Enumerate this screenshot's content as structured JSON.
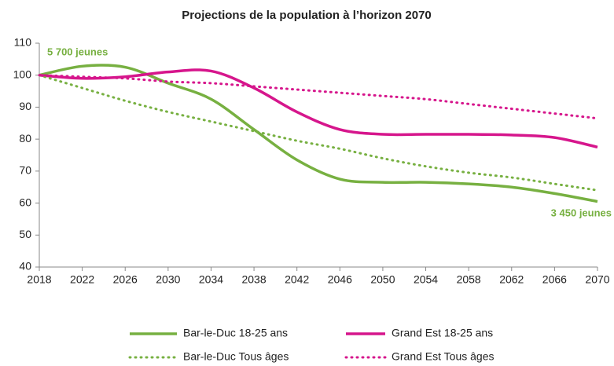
{
  "chart_data": {
    "type": "line",
    "title": "Projections de la population à l’horizon 2070",
    "x": [
      2018,
      2022,
      2026,
      2030,
      2034,
      2038,
      2042,
      2046,
      2050,
      2054,
      2058,
      2062,
      2066,
      2070
    ],
    "xlim": [
      2018,
      2070
    ],
    "xticks": [
      2018,
      2022,
      2026,
      2030,
      2034,
      2038,
      2042,
      2046,
      2050,
      2054,
      2058,
      2062,
      2066,
      2070
    ],
    "ylim": [
      40,
      110
    ],
    "yticks": [
      40,
      50,
      60,
      70,
      80,
      90,
      100,
      110
    ],
    "series": [
      {
        "name": "Bar-le-Duc 18-25 ans",
        "color": "#77b041",
        "style": "solid",
        "values": [
          100,
          102.8,
          102.5,
          97.5,
          92.5,
          83,
          73.5,
          67.5,
          66.5,
          66.5,
          66,
          65,
          63,
          60.5
        ]
      },
      {
        "name": "Grand Est 18-25 ans",
        "color": "#d6168c",
        "style": "solid",
        "values": [
          100,
          99,
          99.5,
          101,
          101.3,
          96,
          88.5,
          83,
          81.5,
          81.5,
          81.5,
          81.3,
          80.5,
          77.5
        ]
      },
      {
        "name": "Bar-le-Duc Tous âges",
        "color": "#77b041",
        "style": "dotted",
        "values": [
          100,
          96,
          92,
          88.5,
          85.5,
          82.5,
          79.5,
          77,
          74,
          71.5,
          69.5,
          68,
          66,
          64
        ]
      },
      {
        "name": "Grand Est Tous âges",
        "color": "#d6168c",
        "style": "dotted",
        "values": [
          100,
          99.5,
          99,
          98,
          97.5,
          96.5,
          95.5,
          94.5,
          93.5,
          92.5,
          91,
          89.5,
          88,
          86.5
        ]
      }
    ],
    "annotations": [
      "5 700 jeunes",
      "3 450 jeunes"
    ]
  }
}
